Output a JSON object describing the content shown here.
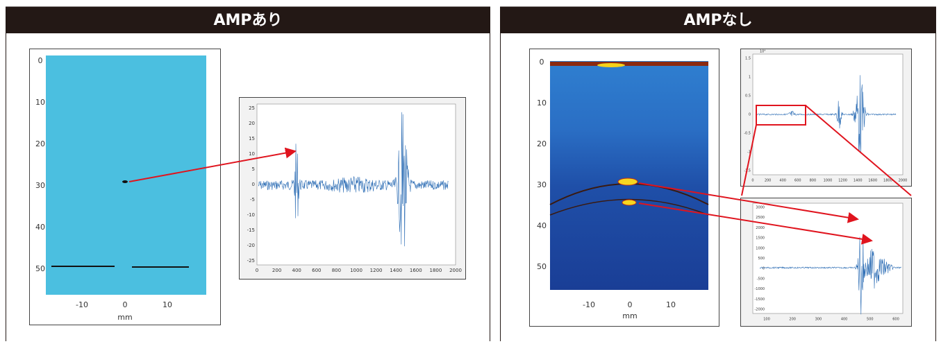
{
  "panels": [
    {
      "title": "AMPあり",
      "image": {
        "yticks": [
          "0",
          "10",
          "20",
          "30",
          "40",
          "50"
        ],
        "xticks": [
          "-10",
          "0",
          "10"
        ],
        "xlabel": "mm"
      },
      "plots": [
        {
          "yticks": [
            "25",
            "20",
            "15",
            "10",
            "5",
            "0",
            "-5",
            "-10",
            "-15",
            "-20",
            "-25"
          ],
          "xticks": [
            "0",
            "200",
            "400",
            "600",
            "800",
            "1000",
            "1200",
            "1400",
            "1600",
            "1800",
            "2000"
          ]
        }
      ]
    },
    {
      "title": "AMPなし",
      "image": {
        "yticks": [
          "0",
          "10",
          "20",
          "30",
          "40",
          "50"
        ],
        "xticks": [
          "-10",
          "0",
          "10"
        ],
        "xlabel": "mm"
      },
      "plots": [
        {
          "exponent": "10⁴",
          "yticks": [
            "1.5",
            "1",
            "0.5",
            "0",
            "-0.5",
            "-1",
            "-1.5"
          ],
          "xticks": [
            "0",
            "200",
            "400",
            "600",
            "800",
            "1000",
            "1200",
            "1400",
            "1600",
            "1800",
            "2000"
          ]
        },
        {
          "yticks": [
            "3000",
            "2500",
            "2000",
            "1500",
            "1000",
            "500",
            "0",
            "-500",
            "-1000",
            "-1500",
            "-2000"
          ],
          "xticks": [
            "100",
            "200",
            "300",
            "400",
            "500",
            "600"
          ]
        }
      ]
    }
  ]
}
